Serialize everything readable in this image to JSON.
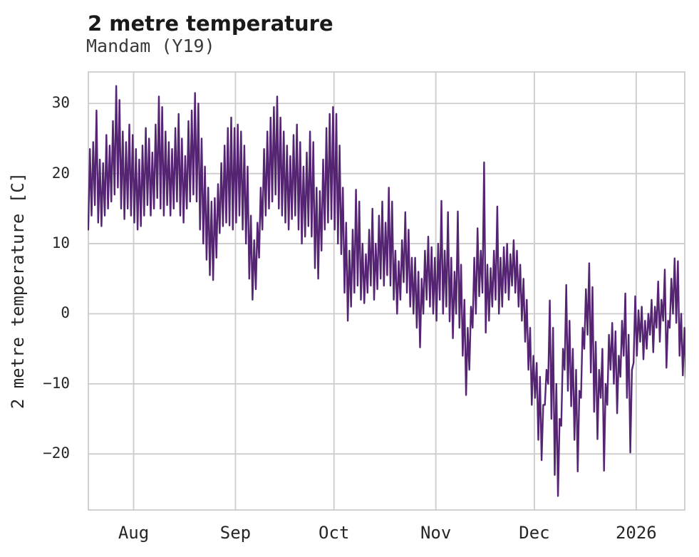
{
  "chart_data": {
    "type": "line",
    "title": "2 metre temperature",
    "subtitle": "Mandam (Y19)",
    "ylabel": "2 metre temperature [C]",
    "series_name": "2 metre temperature",
    "line_color": "#552472",
    "grid_color": "#cccccc",
    "background": "#ffffff",
    "legend": "none",
    "grid": "on",
    "y_ticks": [
      30,
      20,
      10,
      0,
      -10,
      -20
    ],
    "y_range": [
      -28.1,
      34.6
    ],
    "x_ticks": [
      {
        "label": "Aug",
        "day": 14
      },
      {
        "label": "Sep",
        "day": 45
      },
      {
        "label": "Oct",
        "day": 75
      },
      {
        "label": "Nov",
        "day": 106
      },
      {
        "label": "Dec",
        "day": 136
      },
      {
        "label": "2026",
        "day": 167
      }
    ],
    "x_range_days": [
      0,
      182
    ],
    "x_note": "day index from start of trace (mid-July) to mid-January; two samples per day (daily min, daily max) reproduce the diurnal zigzag",
    "daily_min_max": [
      [
        12,
        23.5
      ],
      [
        14,
        24.5
      ],
      [
        15.5,
        29
      ],
      [
        13,
        22
      ],
      [
        12.5,
        21.5
      ],
      [
        14,
        25.5
      ],
      [
        15,
        24
      ],
      [
        16,
        27.5
      ],
      [
        17,
        32.5
      ],
      [
        18,
        30.5
      ],
      [
        15,
        26
      ],
      [
        13.5,
        24.5
      ],
      [
        15,
        27
      ],
      [
        14,
        25.5
      ],
      [
        13,
        23.5
      ],
      [
        12,
        22
      ],
      [
        12.5,
        24
      ],
      [
        14,
        26.5
      ],
      [
        15.5,
        25
      ],
      [
        14,
        23
      ],
      [
        15,
        27
      ],
      [
        16.5,
        31
      ],
      [
        15,
        29.5
      ],
      [
        14,
        26
      ],
      [
        15.5,
        24.5
      ],
      [
        14,
        23.5
      ],
      [
        15,
        26.5
      ],
      [
        16,
        28.5
      ],
      [
        14,
        25
      ],
      [
        13,
        22.5
      ],
      [
        15,
        27.5
      ],
      [
        16,
        29
      ],
      [
        17,
        31.5
      ],
      [
        16,
        30
      ],
      [
        12,
        25
      ],
      [
        10,
        21
      ],
      [
        7.7,
        18
      ],
      [
        5.5,
        16
      ],
      [
        4.8,
        16.5
      ],
      [
        8,
        18.5
      ],
      [
        11.5,
        21.5
      ],
      [
        12.5,
        24
      ],
      [
        13,
        26.5
      ],
      [
        12.6,
        28
      ],
      [
        12,
        26.5
      ],
      [
        13,
        27
      ],
      [
        14,
        26
      ],
      [
        12,
        24
      ],
      [
        10,
        21
      ],
      [
        5,
        14
      ],
      [
        2,
        10.5
      ],
      [
        3.5,
        13
      ],
      [
        8,
        18
      ],
      [
        12,
        23.5
      ],
      [
        14,
        26
      ],
      [
        15,
        28
      ],
      [
        16,
        29.5
      ],
      [
        17,
        31
      ],
      [
        15,
        28
      ],
      [
        14,
        26
      ],
      [
        13,
        24
      ],
      [
        12,
        22.5
      ],
      [
        13.5,
        25.5
      ],
      [
        14,
        27
      ],
      [
        12,
        24.5
      ],
      [
        10,
        21
      ],
      [
        11,
        23
      ],
      [
        12.5,
        26
      ],
      [
        11,
        24.5
      ],
      [
        6.5,
        18
      ],
      [
        5,
        17.5
      ],
      [
        9,
        22
      ],
      [
        12,
        26.5
      ],
      [
        13,
        28.5
      ],
      [
        13.5,
        29.5
      ],
      [
        12,
        28.5
      ],
      [
        10,
        24
      ],
      [
        8.5,
        18
      ],
      [
        3,
        13
      ],
      [
        -1,
        9
      ],
      [
        1,
        12
      ],
      [
        3,
        17.7
      ],
      [
        4,
        16
      ],
      [
        2,
        10
      ],
      [
        1.5,
        8.5
      ],
      [
        3,
        12
      ],
      [
        4,
        15
      ],
      [
        2,
        10
      ],
      [
        3.5,
        14
      ],
      [
        5,
        16
      ],
      [
        4,
        13
      ],
      [
        5.5,
        18
      ],
      [
        4,
        16
      ],
      [
        2,
        9
      ],
      [
        0,
        7.5
      ],
      [
        2,
        10.5
      ],
      [
        4.5,
        14.5
      ],
      [
        3,
        12
      ],
      [
        1,
        8
      ],
      [
        0,
        8
      ],
      [
        -2,
        6
      ],
      [
        -4.8,
        5
      ],
      [
        0,
        9
      ],
      [
        2,
        11
      ],
      [
        1,
        9.5
      ],
      [
        0,
        8
      ],
      [
        -1,
        10
      ],
      [
        2,
        16.1
      ],
      [
        0,
        9
      ],
      [
        1,
        14.5
      ],
      [
        -1.1,
        8
      ],
      [
        -3.5,
        6
      ],
      [
        0,
        14.6
      ],
      [
        -2,
        7
      ],
      [
        -6,
        2
      ],
      [
        -11.6,
        -2
      ],
      [
        -8,
        1
      ],
      [
        -2,
        8
      ],
      [
        0,
        12.2
      ],
      [
        2.5,
        9
      ],
      [
        3,
        21.6
      ],
      [
        -2.7,
        7
      ],
      [
        -1,
        6.5
      ],
      [
        1,
        9
      ],
      [
        2,
        15.3
      ],
      [
        0,
        8
      ],
      [
        1,
        9.5
      ],
      [
        3,
        10
      ],
      [
        2,
        8.5
      ],
      [
        4,
        10.5
      ],
      [
        3,
        9
      ],
      [
        1,
        7
      ],
      [
        -1,
        5
      ],
      [
        -4,
        2
      ],
      [
        -8,
        -2
      ],
      [
        -13,
        -6
      ],
      [
        -12,
        -7
      ],
      [
        -18,
        -9
      ],
      [
        -20.9,
        -13
      ],
      [
        -13,
        -8
      ],
      [
        -10,
        1.9
      ],
      [
        -15,
        -2
      ],
      [
        -23,
        -10
      ],
      [
        -26,
        -15
      ],
      [
        -16,
        -5
      ],
      [
        -8,
        4.1
      ],
      [
        -11,
        -1
      ],
      [
        -13.2,
        -5
      ],
      [
        -18,
        -8
      ],
      [
        -22.5,
        -11
      ],
      [
        -12,
        -2
      ],
      [
        -5,
        3.5
      ],
      [
        -3,
        7.2
      ],
      [
        -8.4,
        3.8
      ],
      [
        -14,
        -4
      ],
      [
        -17.9,
        -8
      ],
      [
        -12,
        -5
      ],
      [
        -22.4,
        -10
      ],
      [
        -13,
        -3
      ],
      [
        -8,
        -1.3
      ],
      [
        -10,
        -2.5
      ],
      [
        -14.2,
        -6
      ],
      [
        -9,
        -1
      ],
      [
        -6,
        2.9
      ],
      [
        -12,
        -3
      ],
      [
        -19.8,
        -8
      ],
      [
        -7,
        2.5
      ],
      [
        -6,
        0.5
      ],
      [
        -4,
        1
      ],
      [
        -6.5,
        -1
      ],
      [
        -5,
        0
      ],
      [
        -3,
        2
      ],
      [
        -5.5,
        1
      ],
      [
        -2,
        4.6
      ],
      [
        -4,
        2
      ],
      [
        -1,
        6.3
      ],
      [
        -7.7,
        -1
      ],
      [
        -2,
        5
      ],
      [
        0,
        7.9
      ],
      [
        -1.3,
        7.5
      ],
      [
        -6,
        0
      ],
      [
        -8.8,
        -2
      ],
      [
        -9.2,
        -8.5
      ]
    ]
  }
}
